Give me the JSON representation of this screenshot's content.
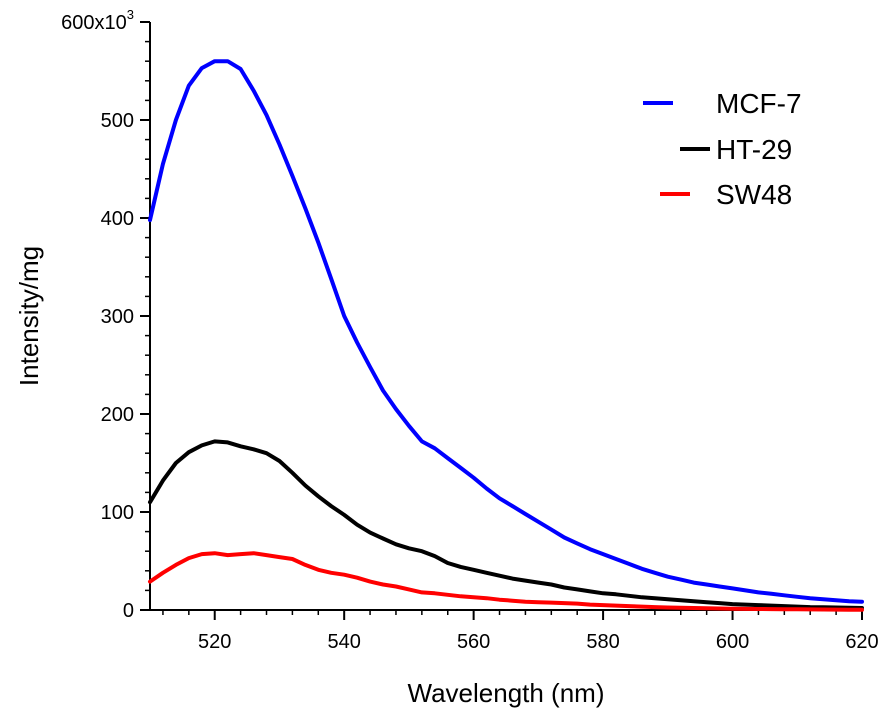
{
  "chart_data": {
    "type": "line",
    "xlabel": "Wavelength (nm)",
    "ylabel": "Intensity/mg",
    "xlim": [
      510,
      620
    ],
    "ylim": [
      0,
      600000
    ],
    "x_ticks": [
      520,
      540,
      560,
      580,
      600,
      620
    ],
    "y_ticks": [
      0,
      100,
      200,
      300,
      400,
      500,
      600
    ],
    "y_top_label_base": "600x10",
    "y_top_label_exp": "3",
    "grid": false,
    "legend_position": "top-right",
    "series": [
      {
        "name": "MCF-7",
        "color": "#0000ff",
        "x": [
          510,
          512,
          514,
          516,
          518,
          520,
          522,
          524,
          526,
          528,
          530,
          532,
          534,
          536,
          538,
          540,
          542,
          544,
          546,
          548,
          550,
          552,
          554,
          556,
          558,
          560,
          562,
          564,
          566,
          568,
          570,
          572,
          574,
          576,
          578,
          580,
          582,
          584,
          586,
          588,
          590,
          592,
          594,
          596,
          598,
          600,
          602,
          604,
          606,
          608,
          610,
          612,
          614,
          616,
          618,
          620
        ],
        "values": [
          398000,
          455000,
          500000,
          535000,
          553000,
          560000,
          560000,
          552000,
          530000,
          505000,
          475000,
          443000,
          410000,
          375000,
          338000,
          300000,
          273000,
          248000,
          224000,
          205000,
          188000,
          172000,
          165000,
          155000,
          145000,
          135000,
          124000,
          114000,
          106000,
          98000,
          90000,
          82000,
          74000,
          68000,
          62000,
          57000,
          52000,
          47000,
          42000,
          38000,
          34000,
          31000,
          28000,
          26000,
          24000,
          22000,
          20000,
          18000,
          16500,
          15000,
          13500,
          12000,
          11000,
          10000,
          9000,
          8500
        ]
      },
      {
        "name": "HT-29",
        "color": "#000000",
        "x": [
          510,
          512,
          514,
          516,
          518,
          520,
          522,
          524,
          526,
          528,
          530,
          532,
          534,
          536,
          538,
          540,
          542,
          544,
          546,
          548,
          550,
          552,
          554,
          556,
          558,
          560,
          562,
          564,
          566,
          568,
          570,
          572,
          574,
          576,
          578,
          580,
          582,
          584,
          586,
          588,
          590,
          592,
          594,
          596,
          598,
          600,
          602,
          604,
          606,
          608,
          610,
          612,
          614,
          616,
          618,
          620
        ],
        "values": [
          110000,
          132000,
          150000,
          161000,
          168000,
          172000,
          171000,
          167000,
          164000,
          160000,
          152000,
          140000,
          127000,
          116000,
          106000,
          97000,
          87000,
          79000,
          73000,
          67000,
          63000,
          60000,
          55000,
          48000,
          44000,
          41000,
          38000,
          35000,
          32000,
          30000,
          28000,
          26000,
          23000,
          21000,
          19000,
          17000,
          16000,
          14500,
          13000,
          12000,
          11000,
          10000,
          9000,
          8000,
          7000,
          6000,
          5500,
          5000,
          4500,
          4000,
          3500,
          3000,
          2800,
          2500,
          2200,
          2000
        ]
      },
      {
        "name": "SW48",
        "color": "#ff0000",
        "x": [
          510,
          512,
          514,
          516,
          518,
          520,
          522,
          524,
          526,
          528,
          530,
          532,
          534,
          536,
          538,
          540,
          542,
          544,
          546,
          548,
          550,
          552,
          554,
          556,
          558,
          560,
          562,
          564,
          566,
          568,
          570,
          572,
          574,
          576,
          578,
          580,
          582,
          584,
          586,
          588,
          590,
          592,
          594,
          596,
          598,
          600,
          602,
          604,
          606,
          608,
          610,
          612,
          614,
          616,
          618,
          620
        ],
        "values": [
          29000,
          38000,
          46000,
          53000,
          57000,
          58000,
          56000,
          57000,
          58000,
          56000,
          54000,
          52000,
          46000,
          41000,
          38000,
          36000,
          33000,
          29000,
          26000,
          24000,
          21000,
          18000,
          17000,
          15500,
          14000,
          13000,
          12000,
          10500,
          9500,
          8500,
          8000,
          7500,
          7000,
          6500,
          5500,
          5000,
          4500,
          4000,
          3500,
          3000,
          2500,
          2200,
          2000,
          1800,
          1500,
          1300,
          1100,
          1000,
          900,
          800,
          700,
          600,
          500,
          400,
          300,
          200
        ]
      }
    ]
  }
}
